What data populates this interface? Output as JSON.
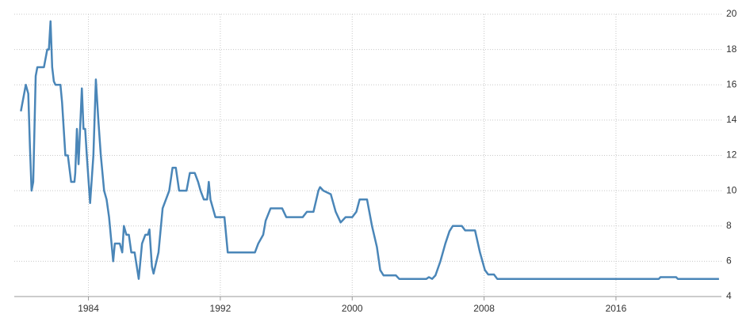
{
  "chart_data": {
    "type": "line",
    "x": [
      1979.9,
      1980.2,
      1980.35,
      1980.45,
      1980.55,
      1980.65,
      1980.8,
      1980.9,
      1981.3,
      1981.5,
      1981.6,
      1981.7,
      1981.8,
      1981.9,
      1982.0,
      1982.3,
      1982.4,
      1982.6,
      1982.75,
      1982.95,
      1983.15,
      1983.2,
      1983.3,
      1983.4,
      1983.6,
      1983.7,
      1983.8,
      1983.9,
      1984.1,
      1984.3,
      1984.45,
      1984.6,
      1984.75,
      1984.95,
      1985.1,
      1985.25,
      1985.5,
      1985.6,
      1985.9,
      1986.05,
      1986.15,
      1986.3,
      1986.45,
      1986.6,
      1986.8,
      1987.05,
      1987.25,
      1987.45,
      1987.6,
      1987.7,
      1987.85,
      1987.95,
      1988.25,
      1988.5,
      1988.7,
      1988.9,
      1989.1,
      1989.3,
      1989.5,
      1989.95,
      1990.15,
      1990.45,
      1990.65,
      1990.8,
      1991.0,
      1991.2,
      1991.3,
      1991.4,
      1991.7,
      1992.25,
      1992.45,
      1994.1,
      1994.3,
      1994.6,
      1994.75,
      1995.05,
      1995.75,
      1996.0,
      1997.0,
      1997.25,
      1997.65,
      1997.95,
      1998.05,
      1998.25,
      1998.7,
      1999.0,
      1999.3,
      1999.6,
      2000.0,
      2000.25,
      2000.45,
      2000.9,
      2001.2,
      2001.5,
      2001.7,
      2001.9,
      2002.65,
      2002.85,
      2004.5,
      2004.65,
      2004.85,
      2005.05,
      2005.35,
      2005.65,
      2005.9,
      2006.1,
      2006.65,
      2006.85,
      2007.45,
      2007.75,
      2008.05,
      2008.25,
      2008.6,
      2008.8,
      2018.6,
      2018.7,
      2019.65,
      2019.75,
      2022.25
    ],
    "series": [
      {
        "color": "#4a86b8",
        "values": [
          14.5,
          16,
          15.5,
          12.5,
          10,
          10.5,
          16.5,
          17,
          17,
          18,
          18,
          19.6,
          17,
          16.2,
          16,
          16,
          15,
          12,
          12,
          10.5,
          10.5,
          11,
          13.5,
          11.5,
          15.8,
          13.5,
          13.5,
          12,
          9.3,
          12,
          16.3,
          14,
          12,
          10,
          9.5,
          8.5,
          6,
          7,
          7,
          6.5,
          8,
          7.5,
          7.5,
          6.5,
          6.5,
          5,
          7,
          7.5,
          7.5,
          7.8,
          5.7,
          5.3,
          6.5,
          9,
          9.5,
          10,
          11.3,
          11.3,
          10,
          10,
          11,
          11,
          10.5,
          10,
          9.5,
          9.5,
          10.5,
          9.5,
          8.5,
          8.5,
          6.5,
          6.5,
          7,
          7.5,
          8.3,
          9,
          9,
          8.5,
          8.5,
          8.8,
          8.8,
          10,
          10.2,
          10,
          9.8,
          8.8,
          8.2,
          8.5,
          8.5,
          8.8,
          9.5,
          9.5,
          8,
          6.8,
          5.5,
          5.2,
          5.2,
          5,
          5,
          5.1,
          5,
          5.2,
          6,
          7,
          7.7,
          8,
          8,
          7.75,
          7.75,
          6.5,
          5.5,
          5.25,
          5.25,
          5,
          5,
          5.1,
          5.1,
          5,
          5
        ]
      }
    ],
    "xlim": [
      1979.5,
      2022.4
    ],
    "xticks": [
      1984,
      1992,
      2000,
      2008,
      2016
    ],
    "ylim": [
      4,
      20
    ],
    "yticks": [
      4,
      6,
      8,
      10,
      12,
      14,
      16,
      18,
      20
    ],
    "grid": true
  }
}
